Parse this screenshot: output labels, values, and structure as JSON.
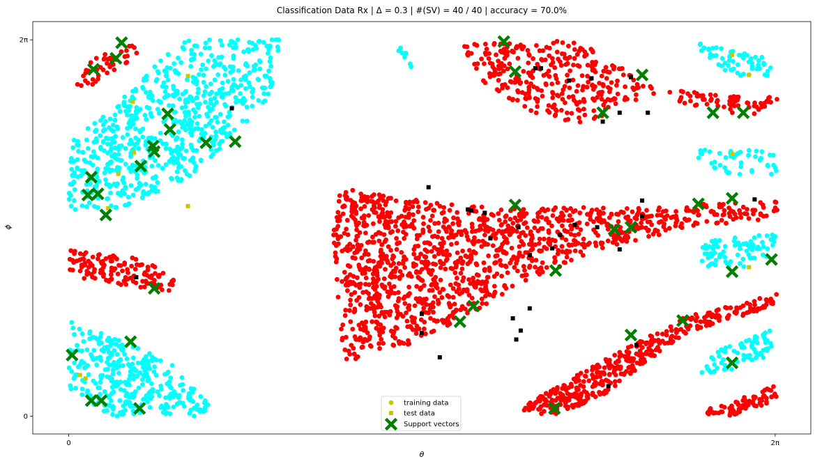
{
  "chart_data": {
    "type": "scatter",
    "title": "Classification Data Rx | Δ = 0.3 | #(SV) = 40 / 40 | accuracy = 70.0%",
    "xlabel": "θ",
    "ylabel": "ϕ",
    "xlim": [
      -0.32,
      6.6
    ],
    "ylim": [
      -0.16,
      3.55
    ],
    "xticks": [
      {
        "value": 0,
        "label": "0"
      },
      {
        "value": 6.283,
        "label": "2π"
      }
    ],
    "yticks": [
      {
        "value": 0,
        "label": "0"
      },
      {
        "value": 3.386,
        "label": "2π"
      }
    ],
    "grid": false,
    "legend_position": "bottom-center",
    "colors": {
      "class_cyan": "#00ffff",
      "class_red": "#ff0000",
      "test_black": "#000000",
      "test_yellow": "#c8c800",
      "support_vector": "#008000",
      "legend_training": "#c8c800",
      "legend_test": "#c8c800"
    },
    "legend": [
      {
        "label": "training data",
        "marker": "circle"
      },
      {
        "label": "test data",
        "marker": "square"
      },
      {
        "label": "Support vectors",
        "marker": "x"
      }
    ],
    "regions": [
      {
        "class": "red",
        "count": 45,
        "polygon": [
          [
            0.0,
            2.93
          ],
          [
            0.18,
            3.2
          ],
          [
            0.62,
            3.37
          ],
          [
            0.6,
            3.24
          ],
          [
            0.22,
            2.98
          ]
        ]
      },
      {
        "class": "cyan",
        "count": 700,
        "polygon": [
          [
            0.0,
            2.45
          ],
          [
            0.0,
            1.85
          ],
          [
            0.5,
            1.88
          ],
          [
            1.1,
            2.16
          ],
          [
            1.45,
            2.5
          ],
          [
            1.8,
            2.9
          ],
          [
            1.9,
            3.4
          ],
          [
            1.0,
            3.38
          ],
          [
            0.4,
            2.78
          ],
          [
            0.0,
            2.45
          ]
        ]
      },
      {
        "class": "cyan",
        "count": 8,
        "polygon": [
          [
            2.9,
            3.3
          ],
          [
            3.05,
            3.35
          ],
          [
            3.05,
            3.13
          ],
          [
            2.98,
            3.18
          ]
        ]
      },
      {
        "class": "red",
        "count": 380,
        "polygon": [
          [
            3.5,
            3.35
          ],
          [
            4.6,
            3.38
          ],
          [
            5.2,
            2.95
          ],
          [
            6.3,
            2.88
          ],
          [
            6.3,
            2.68
          ],
          [
            5.7,
            2.75
          ],
          [
            5.2,
            2.9
          ],
          [
            4.6,
            2.63
          ],
          [
            4.2,
            2.68
          ],
          [
            3.7,
            3.0
          ],
          [
            3.5,
            3.28
          ]
        ]
      },
      {
        "class": "cyan",
        "count": 55,
        "polygon": [
          [
            5.6,
            3.38
          ],
          [
            6.25,
            3.22
          ],
          [
            6.25,
            3.05
          ],
          [
            5.9,
            3.07
          ],
          [
            5.6,
            3.28
          ]
        ]
      },
      {
        "class": "cyan",
        "count": 45,
        "polygon": [
          [
            5.6,
            2.42
          ],
          [
            6.3,
            2.38
          ],
          [
            6.3,
            2.16
          ],
          [
            5.8,
            2.18
          ],
          [
            5.6,
            2.3
          ]
        ]
      },
      {
        "class": "red",
        "count": 1300,
        "polygon": [
          [
            2.4,
            2.06
          ],
          [
            3.2,
            1.93
          ],
          [
            3.9,
            1.88
          ],
          [
            4.8,
            1.88
          ],
          [
            6.3,
            1.93
          ],
          [
            6.3,
            1.78
          ],
          [
            5.5,
            1.7
          ],
          [
            4.6,
            1.45
          ],
          [
            4.0,
            1.18
          ],
          [
            3.2,
            0.7
          ],
          [
            2.45,
            0.48
          ],
          [
            2.4,
            1.0
          ],
          [
            2.35,
            1.6
          ]
        ]
      },
      {
        "class": "cyan",
        "count": 80,
        "polygon": [
          [
            5.6,
            1.6
          ],
          [
            6.3,
            1.64
          ],
          [
            6.3,
            1.48
          ],
          [
            6.0,
            1.32
          ],
          [
            5.65,
            1.35
          ],
          [
            5.6,
            1.45
          ]
        ]
      },
      {
        "class": "red",
        "count": 130,
        "polygon": [
          [
            0.0,
            1.5
          ],
          [
            0.6,
            1.42
          ],
          [
            0.95,
            1.27
          ],
          [
            0.95,
            1.12
          ],
          [
            0.65,
            1.15
          ],
          [
            0.0,
            1.25
          ]
        ]
      },
      {
        "class": "red",
        "count": 400,
        "polygon": [
          [
            4.05,
            0.1
          ],
          [
            4.7,
            0.47
          ],
          [
            5.5,
            0.9
          ],
          [
            6.3,
            1.1
          ],
          [
            6.3,
            1.0
          ],
          [
            5.5,
            0.75
          ],
          [
            4.7,
            0.15
          ],
          [
            4.3,
            0.0
          ],
          [
            4.05,
            0.05
          ]
        ]
      },
      {
        "class": "cyan",
        "count": 320,
        "polygon": [
          [
            0.0,
            0.86
          ],
          [
            0.45,
            0.7
          ],
          [
            0.9,
            0.48
          ],
          [
            1.25,
            0.12
          ],
          [
            1.2,
            0.0
          ],
          [
            0.4,
            0.0
          ],
          [
            0.0,
            0.2
          ]
        ]
      },
      {
        "class": "cyan",
        "count": 75,
        "polygon": [
          [
            5.6,
            0.52
          ],
          [
            6.25,
            0.78
          ],
          [
            6.25,
            0.55
          ],
          [
            5.9,
            0.42
          ],
          [
            5.6,
            0.38
          ]
        ]
      },
      {
        "class": "red",
        "count": 70,
        "polygon": [
          [
            5.65,
            0.05
          ],
          [
            6.3,
            0.28
          ],
          [
            6.3,
            0.15
          ],
          [
            5.9,
            0.0
          ],
          [
            5.65,
            0.02
          ]
        ]
      }
    ],
    "test_data": {
      "black": [
        [
          3.2,
          2.06
        ],
        [
          3.58,
          1.85
        ],
        [
          3.7,
          1.83
        ],
        [
          4.0,
          1.7
        ],
        [
          4.5,
          1.72
        ],
        [
          4.7,
          1.7
        ],
        [
          5.1,
          1.8
        ],
        [
          6.1,
          1.95
        ],
        [
          3.75,
          1.6
        ],
        [
          4.1,
          1.45
        ],
        [
          3.3,
          0.53
        ],
        [
          3.14,
          0.92
        ],
        [
          3.14,
          0.75
        ],
        [
          4.1,
          0.97
        ],
        [
          3.95,
          0.88
        ],
        [
          4.02,
          0.77
        ],
        [
          3.98,
          0.69
        ],
        [
          4.3,
          1.51
        ],
        [
          4.37,
          1.63
        ],
        [
          4.9,
          1.5
        ],
        [
          5.1,
          1.94
        ],
        [
          4.2,
          3.13
        ],
        [
          4.15,
          3.13
        ],
        [
          4.45,
          3.02
        ],
        [
          4.65,
          3.04
        ],
        [
          5.0,
          3.05
        ],
        [
          5.15,
          2.73
        ],
        [
          4.75,
          2.65
        ],
        [
          4.9,
          2.73
        ],
        [
          1.45,
          2.77
        ],
        [
          0.6,
          1.25
        ],
        [
          5.05,
          0.64
        ],
        [
          4.8,
          0.27
        ],
        [
          3.55,
          1.86
        ]
      ],
      "yellow": [
        [
          5.9,
          3.25
        ],
        [
          6.05,
          3.07
        ],
        [
          5.9,
          2.36
        ],
        [
          6.05,
          1.34
        ],
        [
          0.57,
          2.83
        ],
        [
          0.58,
          2.37
        ],
        [
          0.44,
          2.18
        ],
        [
          1.06,
          3.06
        ],
        [
          1.06,
          1.89
        ],
        [
          0.35,
          1.87
        ],
        [
          0.1,
          0.37
        ],
        [
          0.15,
          0.34
        ]
      ]
    },
    "support_vectors": [
      [
        0.47,
        3.36
      ],
      [
        0.42,
        3.22
      ],
      [
        0.22,
        3.12
      ],
      [
        0.88,
        2.72
      ],
      [
        0.9,
        2.58
      ],
      [
        0.75,
        2.43
      ],
      [
        0.76,
        2.38
      ],
      [
        0.64,
        2.25
      ],
      [
        1.22,
        2.46
      ],
      [
        1.48,
        2.47
      ],
      [
        0.2,
        2.15
      ],
      [
        0.17,
        1.99
      ],
      [
        0.26,
        2.0
      ],
      [
        0.33,
        1.81
      ],
      [
        0.76,
        1.15
      ],
      [
        0.55,
        0.67
      ],
      [
        0.03,
        0.55
      ],
      [
        0.2,
        0.14
      ],
      [
        0.29,
        0.14
      ],
      [
        0.63,
        0.07
      ],
      [
        3.87,
        3.37
      ],
      [
        3.97,
        3.1
      ],
      [
        4.75,
        2.73
      ],
      [
        5.1,
        3.07
      ],
      [
        5.73,
        2.73
      ],
      [
        6.0,
        2.73
      ],
      [
        3.97,
        1.9
      ],
      [
        4.85,
        1.68
      ],
      [
        5.0,
        1.7
      ],
      [
        5.6,
        1.91
      ],
      [
        5.9,
        1.96
      ],
      [
        4.33,
        1.31
      ],
      [
        3.6,
        0.99
      ],
      [
        3.48,
        0.85
      ],
      [
        5.9,
        1.3
      ],
      [
        6.25,
        1.41
      ],
      [
        5.46,
        0.86
      ],
      [
        5.0,
        0.73
      ],
      [
        5.9,
        0.48
      ],
      [
        4.32,
        0.07
      ]
    ]
  }
}
